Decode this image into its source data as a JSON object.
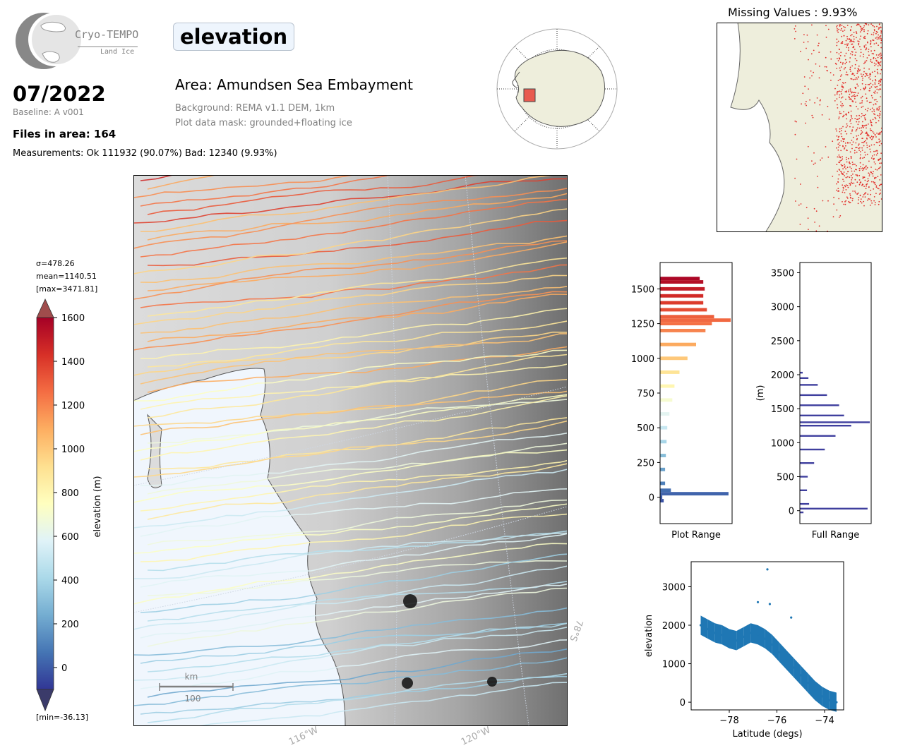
{
  "header": {
    "logo_title": "Cryo-TEMPO",
    "logo_subtitle": "Land Ice",
    "date": "07/2022",
    "baseline": "Baseline: A v001",
    "files_in_area": "Files in area: 164",
    "measurements": "Measurements: Ok 111932 (90.07%) Bad: 12340 (9.93%)",
    "parameter": "elevation",
    "area": "Area: Amundsen Sea Embayment",
    "background": "Background: REMA v1.1 DEM, 1km",
    "mask": "Plot data mask: grounded+floating ice"
  },
  "missing": {
    "title": "Missing Values : 9.93%"
  },
  "colorbar": {
    "sigma": "σ=478.26",
    "mean": "mean=1140.51",
    "max": "[max=3471.81]",
    "min": "[min=-36.13]",
    "label": "elevation (m)",
    "ticks": [
      "1600",
      "1400",
      "1200",
      "1000",
      "800",
      "600",
      "400",
      "200",
      "0"
    ],
    "colors": [
      "#313695",
      "#4575b4",
      "#74add1",
      "#abd9e9",
      "#e0f3f8",
      "#ffffbf",
      "#fee090",
      "#fdae61",
      "#f46d43",
      "#d73027",
      "#a50026"
    ]
  },
  "main_map": {
    "scale_unit": "km",
    "scale_value": "100",
    "lon_labels": [
      "116°W",
      "120°W"
    ],
    "lat_label": "78°S"
  },
  "chart_data": [
    {
      "type": "bar",
      "orientation": "horizontal",
      "xlabel": "Plot Range",
      "ylabel": "",
      "ylim": [
        -190,
        1690
      ],
      "yticks": [
        "0",
        "250",
        "500",
        "750",
        "1000",
        "1250",
        "1500"
      ],
      "bins": [
        {
          "y": -25,
          "count": 0.05
        },
        {
          "y": 0,
          "count": 0.03
        },
        {
          "y": 25,
          "count": 0.95
        },
        {
          "y": 50,
          "count": 0.15
        },
        {
          "y": 100,
          "count": 0.07
        },
        {
          "y": 200,
          "count": 0.07
        },
        {
          "y": 300,
          "count": 0.08
        },
        {
          "y": 400,
          "count": 0.09
        },
        {
          "y": 500,
          "count": 0.1
        },
        {
          "y": 600,
          "count": 0.13
        },
        {
          "y": 700,
          "count": 0.17
        },
        {
          "y": 800,
          "count": 0.2
        },
        {
          "y": 900,
          "count": 0.27
        },
        {
          "y": 1000,
          "count": 0.38
        },
        {
          "y": 1100,
          "count": 0.5
        },
        {
          "y": 1200,
          "count": 0.63
        },
        {
          "y": 1250,
          "count": 0.72
        },
        {
          "y": 1275,
          "count": 0.98
        },
        {
          "y": 1300,
          "count": 0.75
        },
        {
          "y": 1350,
          "count": 0.65
        },
        {
          "y": 1400,
          "count": 0.6
        },
        {
          "y": 1450,
          "count": 0.6
        },
        {
          "y": 1500,
          "count": 0.62
        },
        {
          "y": 1550,
          "count": 0.6
        },
        {
          "y": 1575,
          "count": 0.55
        }
      ]
    },
    {
      "type": "bar",
      "orientation": "horizontal",
      "xlabel": "Full Range",
      "ylabel": "(m)",
      "ylim": [
        -190,
        3650
      ],
      "yticks": [
        "0",
        "500",
        "1000",
        "1500",
        "2000",
        "2500",
        "3000",
        "3500"
      ],
      "color": "#3f3f9e",
      "bins": [
        {
          "y": -25,
          "count": 0.05
        },
        {
          "y": 30,
          "count": 0.95
        },
        {
          "y": 100,
          "count": 0.13
        },
        {
          "y": 300,
          "count": 0.1
        },
        {
          "y": 500,
          "count": 0.11
        },
        {
          "y": 700,
          "count": 0.2
        },
        {
          "y": 900,
          "count": 0.35
        },
        {
          "y": 1100,
          "count": 0.5
        },
        {
          "y": 1250,
          "count": 0.72
        },
        {
          "y": 1300,
          "count": 0.98
        },
        {
          "y": 1400,
          "count": 0.62
        },
        {
          "y": 1550,
          "count": 0.55
        },
        {
          "y": 1700,
          "count": 0.38
        },
        {
          "y": 1850,
          "count": 0.25
        },
        {
          "y": 1950,
          "count": 0.12
        },
        {
          "y": 2030,
          "count": 0.04
        }
      ]
    },
    {
      "type": "scatter",
      "xlabel": "Latitude (degs)",
      "ylabel": "elevation",
      "xlim": [
        -79.6,
        -73.2
      ],
      "ylim": [
        -200,
        3650
      ],
      "xticks": [
        "−78",
        "−76",
        "−74"
      ],
      "yticks": [
        "0",
        "1000",
        "2000",
        "3000"
      ],
      "color": "#1f77b4",
      "points": [
        [
          -79.2,
          2000
        ],
        [
          -78.9,
          1900
        ],
        [
          -78.6,
          1800
        ],
        [
          -78.3,
          1750
        ],
        [
          -78.0,
          1650
        ],
        [
          -77.7,
          1600
        ],
        [
          -77.4,
          1700
        ],
        [
          -77.1,
          1800
        ],
        [
          -76.8,
          1750
        ],
        [
          -76.5,
          1650
        ],
        [
          -76.2,
          1500
        ],
        [
          -75.9,
          1300
        ],
        [
          -75.6,
          1100
        ],
        [
          -75.3,
          900
        ],
        [
          -75.0,
          700
        ],
        [
          -74.7,
          500
        ],
        [
          -74.4,
          300
        ],
        [
          -74.1,
          150
        ],
        [
          -73.8,
          50
        ],
        [
          -73.5,
          0
        ],
        [
          -76.4,
          3450
        ],
        [
          -76.8,
          2600
        ],
        [
          -76.3,
          2550
        ],
        [
          -75.4,
          2200
        ]
      ]
    }
  ]
}
